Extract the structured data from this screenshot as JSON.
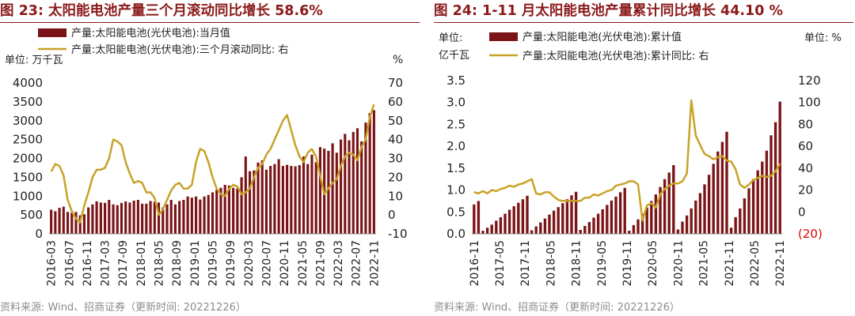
{
  "colors": {
    "bar": "#7b1416",
    "line": "#c9a227",
    "title": "#8b1a1a",
    "source": "#8c8c8c",
    "negative": "#e00000"
  },
  "chart_data": [
    {
      "type": "bar+line",
      "title": "图 23:  太阳能电池产量三个月滚动同比增长 58.6%",
      "legend": [
        "产量:太阳能电池(光伏电池):当月值",
        "产量:太阳能电池(光伏电池):三个月滚动同比:  右"
      ],
      "y_left_unit": "单位: 万千瓦",
      "y_right_unit": "%",
      "y_left_range": [
        0,
        4000
      ],
      "y_left_ticks": [
        "0",
        "500",
        "1000",
        "1500",
        "2000",
        "2500",
        "3000",
        "3500",
        "4000"
      ],
      "y_right_range": [
        -10,
        70
      ],
      "y_right_ticks": [
        "-10",
        "0",
        "10",
        "20",
        "30",
        "40",
        "50",
        "60",
        "70"
      ],
      "x_tick_labels": [
        "2016-03",
        "2016-07",
        "2016-11",
        "2017-03",
        "2017-09",
        "2018-01",
        "2018-05",
        "2018-09",
        "2019-01",
        "2019-05",
        "2019-09",
        "2020-03",
        "2020-07",
        "2020-11",
        "2021-05",
        "2021-09",
        "2022-03",
        "2022-07",
        "2022-11"
      ],
      "series": [
        {
          "name": "当月值",
          "kind": "bar",
          "axis": "left",
          "values": [
            640,
            600,
            690,
            720,
            580,
            560,
            580,
            490,
            520,
            700,
            780,
            860,
            830,
            820,
            900,
            780,
            760,
            820,
            860,
            830,
            880,
            900,
            800,
            800,
            870,
            850,
            830,
            700,
            780,
            900,
            780,
            870,
            900,
            990,
            960,
            990,
            910,
            990,
            1030,
            1100,
            1170,
            1220,
            1300,
            1280,
            1220,
            1200,
            1500,
            2050,
            1660,
            1680,
            1890,
            1950,
            1700,
            1800,
            1850,
            1980,
            1800,
            1830,
            1800,
            1790,
            1820,
            2050,
            1850,
            2100,
            1900,
            2300,
            2260,
            2200,
            2400,
            2150,
            2500,
            2650,
            2480,
            2700,
            2800,
            2450,
            2950,
            3200,
            3280
          ]
        },
        {
          "name": "三个月滚动同比",
          "kind": "line",
          "axis": "right",
          "values": [
            23,
            27,
            26,
            21,
            8,
            2,
            -2,
            -4,
            5,
            12,
            20,
            24,
            24,
            25,
            30,
            40,
            39,
            37,
            28,
            22,
            17,
            18,
            17,
            12,
            12,
            9,
            0,
            3,
            8,
            13,
            16,
            17,
            14,
            14,
            16,
            28,
            35,
            34,
            28,
            20,
            14,
            11,
            10,
            14,
            16,
            15,
            11,
            12,
            14,
            20,
            25,
            27,
            32,
            35,
            40,
            45,
            50,
            53,
            45,
            37,
            31,
            28,
            33,
            35,
            31,
            21,
            11,
            14,
            17,
            19,
            26,
            31,
            33,
            32,
            29,
            36,
            40,
            52,
            58.6
          ]
        }
      ]
    },
    {
      "type": "bar+line",
      "title": "图 24:  1-11 月太阳能电池产量累计同比增长 44.10 %",
      "legend": [
        "产量:太阳能电池(光伏电池):累计值",
        "产量:太阳能电池(光伏电池):累计同比:  右"
      ],
      "y_left_unit": [
        "单位:",
        "亿千瓦"
      ],
      "y_right_unit": "单位:  %",
      "y_left_range": [
        0,
        3.5
      ],
      "y_left_ticks": [
        "0.0",
        "0.5",
        "1.0",
        "1.5",
        "2.0",
        "2.5",
        "3.0",
        "3.5"
      ],
      "y_right_range": [
        -20,
        120
      ],
      "y_right_ticks": [
        "(20)",
        "0",
        "20",
        "40",
        "60",
        "80",
        "100",
        "120"
      ],
      "x_tick_labels": [
        "2016-11",
        "2017-05",
        "2017-11",
        "2018-05",
        "2018-11",
        "2019-05",
        "2019-11",
        "2020-05",
        "2020-11",
        "2021-05",
        "2021-11",
        "2022-05",
        "2022-11"
      ],
      "series": [
        {
          "name": "累计值",
          "kind": "bar",
          "axis": "left",
          "values": [
            0.67,
            0.75,
            0.07,
            0.14,
            0.21,
            0.3,
            0.38,
            0.46,
            0.55,
            0.63,
            0.71,
            0.79,
            0.87,
            0.08,
            0.17,
            0.26,
            0.35,
            0.44,
            0.53,
            0.61,
            0.7,
            0.79,
            0.88,
            0.96,
            0.09,
            0.18,
            0.27,
            0.37,
            0.46,
            0.56,
            0.66,
            0.76,
            0.85,
            0.95,
            1.05,
            0.07,
            0.2,
            0.33,
            0.46,
            0.6,
            0.75,
            0.9,
            1.07,
            1.25,
            1.4,
            1.57,
            0.1,
            0.28,
            0.42,
            0.58,
            0.76,
            0.93,
            1.13,
            1.35,
            1.6,
            1.88,
            2.1,
            2.33,
            0.14,
            0.38,
            0.58,
            0.81,
            1.04,
            1.25,
            1.45,
            1.65,
            1.9,
            2.25,
            2.55,
            3.02
          ]
        },
        {
          "name": "累计同比",
          "kind": "line",
          "axis": "right",
          "values": [
            18,
            17,
            19,
            17,
            20,
            19,
            21,
            22,
            24,
            23,
            25,
            26,
            28,
            30,
            17,
            16,
            18,
            18,
            14,
            11,
            10,
            10,
            10,
            10,
            10,
            13,
            13,
            16,
            15,
            17,
            19,
            20,
            24,
            25,
            26,
            28,
            28,
            25,
            -8,
            6,
            8,
            4,
            16,
            21,
            24,
            26,
            26,
            28,
            35,
            102,
            70,
            61,
            53,
            51,
            48,
            50,
            51,
            47,
            46,
            39,
            25,
            22,
            25,
            29,
            31,
            33,
            32,
            33,
            37,
            44.1
          ]
        }
      ]
    }
  ],
  "source_text": "资料来源:  Wind、招商证券（更新时间:  20221226）"
}
